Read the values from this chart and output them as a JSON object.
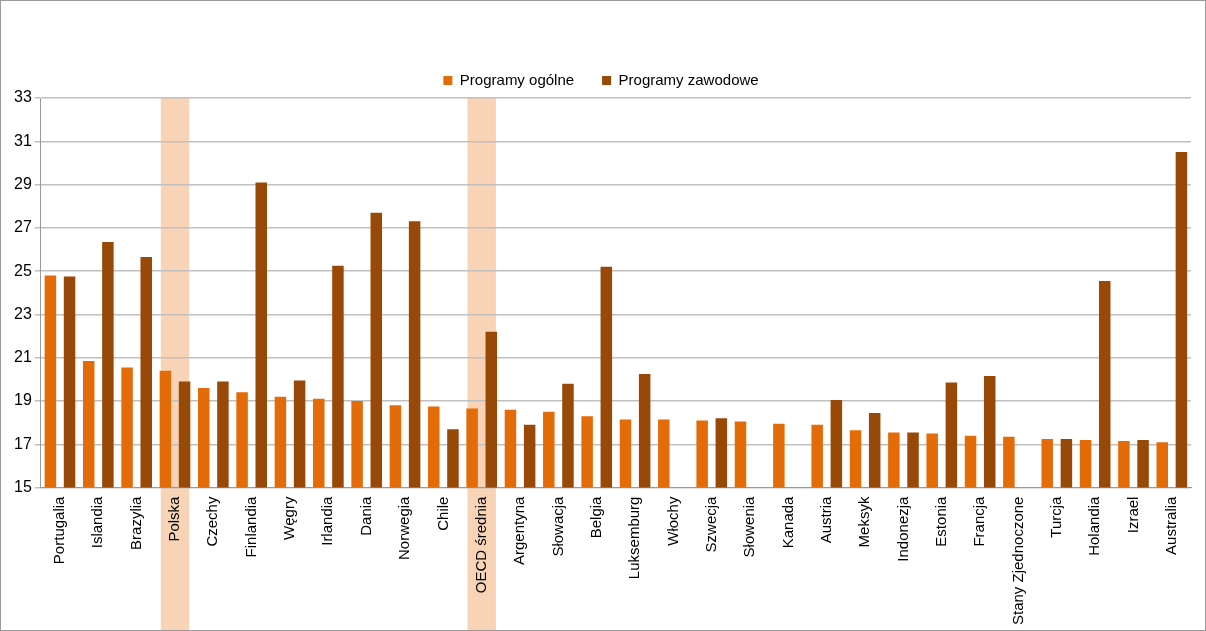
{
  "chart_data": {
    "type": "bar",
    "categories": [
      "Portugalia",
      "Islandia",
      "Brazylia",
      "Polska",
      "Czechy",
      "Finlandia",
      "Węgry",
      "Irlandia",
      "Dania",
      "Norwegia",
      "Chile",
      "OECD średnia",
      "Argentyna",
      "Słowacja",
      "Belgia",
      "Luksemburg",
      "Włochy",
      "Szwecja",
      "Słowenia",
      "Kanada",
      "Austria",
      "Meksyk",
      "Indonezja",
      "Estonia",
      "Francja",
      "Stany Zjednoczone",
      "Turcja",
      "Holandia",
      "Izrael",
      "Australia"
    ],
    "series": [
      {
        "name": "Programy ogólne",
        "color": "#e36c09",
        "values": [
          24.8,
          20.85,
          20.55,
          20.4,
          19.6,
          19.4,
          19.2,
          19.1,
          19.0,
          18.8,
          18.75,
          18.65,
          18.6,
          18.5,
          18.3,
          18.15,
          18.15,
          18.1,
          18.05,
          17.95,
          17.9,
          17.65,
          17.55,
          17.5,
          17.4,
          17.35,
          17.25,
          17.2,
          17.15,
          17.1
        ]
      },
      {
        "name": "Programy zawodowe",
        "color": "#984807",
        "values": [
          24.75,
          26.35,
          25.65,
          19.9,
          19.9,
          29.1,
          19.95,
          25.25,
          27.7,
          27.3,
          17.7,
          22.2,
          17.9,
          19.8,
          25.2,
          20.25,
          null,
          18.2,
          null,
          null,
          19.05,
          18.45,
          17.55,
          19.85,
          20.15,
          null,
          17.25,
          24.55,
          17.2,
          30.5
        ]
      }
    ],
    "ylim": [
      15,
      33
    ],
    "yticks": [
      15,
      17,
      19,
      21,
      23,
      25,
      27,
      29,
      31,
      33
    ],
    "grid": "y",
    "legend": "top",
    "bands": [
      {
        "axis": "x",
        "from": "Polska",
        "to": "Polska",
        "color": "#f8d3b5"
      },
      {
        "axis": "x",
        "from": "OECD średnia",
        "to": "OECD średnia",
        "color": "#f8d3b5"
      }
    ]
  }
}
